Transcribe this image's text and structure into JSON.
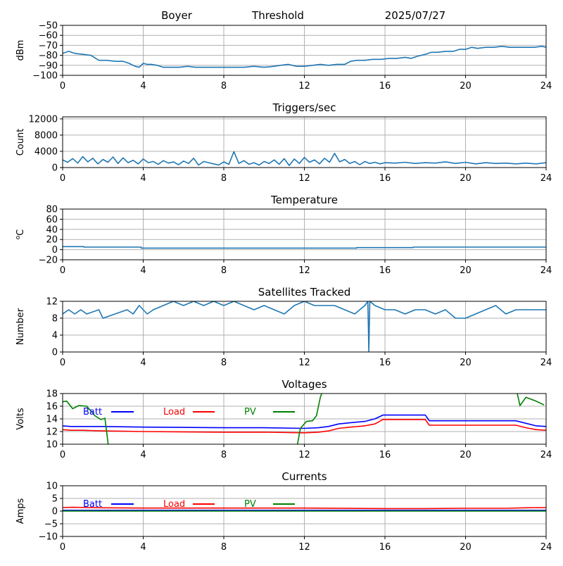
{
  "header": {
    "station": "Boyer",
    "mode": "Threshold",
    "date": "2025/07/27"
  },
  "colors": {
    "series": "#1f77b4",
    "batt": "#0000ff",
    "load": "#ff0000",
    "pv": "#008000",
    "grid": "#b0b0b0"
  },
  "chart_data": [
    {
      "id": "threshold",
      "type": "line",
      "title": "",
      "xlabel": "",
      "ylabel": "dBm",
      "xlim": [
        0,
        24
      ],
      "xticks": [
        0,
        4,
        8,
        12,
        16,
        20,
        24
      ],
      "ylim": [
        -100,
        -50
      ],
      "yticks": [
        -100,
        -90,
        -80,
        -70,
        -60,
        -50
      ],
      "series": [
        {
          "x": [
            0,
            0.3,
            0.6,
            1.0,
            1.4,
            1.8,
            2.2,
            2.6,
            3.0,
            3.3,
            3.6,
            3.8,
            4.0,
            4.2,
            4.4,
            4.7,
            5.0,
            5.4,
            5.8,
            6.2,
            6.6,
            7.0,
            7.5,
            8.0,
            8.5,
            9.0,
            9.5,
            10.0,
            10.5,
            10.8,
            11.2,
            11.6,
            12.0,
            12.4,
            12.8,
            13.2,
            13.6,
            14.0,
            14.3,
            14.6,
            15.0,
            15.4,
            15.8,
            16.2,
            16.6,
            17.0,
            17.3,
            17.6,
            18.0,
            18.3,
            18.6,
            19.0,
            19.4,
            19.7,
            20.0,
            20.3,
            20.6,
            21.0,
            21.4,
            21.8,
            22.2,
            22.6,
            23.0,
            23.4,
            23.8,
            24.0
          ],
          "y": [
            -78,
            -76,
            -78,
            -79,
            -80,
            -85,
            -85,
            -86,
            -86,
            -88,
            -91,
            -92,
            -88,
            -89,
            -89,
            -90,
            -92,
            -92,
            -92,
            -91,
            -92,
            -92,
            -92,
            -92,
            -92,
            -92,
            -91,
            -92,
            -91,
            -90,
            -89,
            -91,
            -91,
            -90,
            -89,
            -90,
            -89,
            -89,
            -86,
            -85,
            -85,
            -84,
            -84,
            -83,
            -83,
            -82,
            -83,
            -81,
            -79,
            -77,
            -77,
            -76,
            -76,
            -74,
            -74,
            -72,
            -73,
            -72,
            -72,
            -71,
            -72,
            -72,
            -72,
            -72,
            -71,
            -72
          ]
        }
      ]
    },
    {
      "id": "triggers",
      "type": "line",
      "title": "Triggers/sec",
      "xlabel": "",
      "ylabel": "Count",
      "xlim": [
        0,
        24
      ],
      "xticks": [
        0,
        4,
        8,
        12,
        16,
        20,
        24
      ],
      "ylim": [
        0,
        12500
      ],
      "yticks": [
        0,
        4000,
        8000,
        12000
      ],
      "series": [
        {
          "x": [
            0,
            0.25,
            0.5,
            0.75,
            1.0,
            1.25,
            1.5,
            1.75,
            2.0,
            2.25,
            2.5,
            2.75,
            3.0,
            3.25,
            3.5,
            3.75,
            4.0,
            4.25,
            4.5,
            4.75,
            5.0,
            5.25,
            5.5,
            5.75,
            6.0,
            6.25,
            6.5,
            6.75,
            7.0,
            7.25,
            7.5,
            7.75,
            8.0,
            8.25,
            8.5,
            8.75,
            9.0,
            9.25,
            9.5,
            9.75,
            10.0,
            10.25,
            10.5,
            10.75,
            11.0,
            11.25,
            11.5,
            11.75,
            12.0,
            12.25,
            12.5,
            12.75,
            13.0,
            13.25,
            13.5,
            13.75,
            14.0,
            14.25,
            14.5,
            14.75,
            15.0,
            15.25,
            15.5,
            15.75,
            16.0,
            16.5,
            17.0,
            17.5,
            18.0,
            18.5,
            19.0,
            19.5,
            20.0,
            20.5,
            21.0,
            21.5,
            22.0,
            22.5,
            23.0,
            23.5,
            24.0
          ],
          "y": [
            1900,
            1300,
            2200,
            1100,
            2700,
            1400,
            2300,
            900,
            2000,
            1300,
            2600,
            1000,
            2400,
            1200,
            1800,
            900,
            2100,
            1200,
            1500,
            800,
            1700,
            1100,
            1400,
            700,
            1600,
            1000,
            2300,
            600,
            1500,
            1200,
            900,
            600,
            1400,
            800,
            3900,
            1000,
            1700,
            800,
            1200,
            600,
            1500,
            1000,
            1900,
            800,
            2200,
            500,
            2100,
            1000,
            2500,
            1300,
            1900,
            900,
            2300,
            1300,
            3500,
            1400,
            2000,
            1000,
            1500,
            700,
            1500,
            1000,
            1300,
            900,
            1200,
            1100,
            1300,
            1000,
            1200,
            1100,
            1400,
            1000,
            1300,
            900,
            1200,
            1000,
            1100,
            900,
            1100,
            900,
            1200
          ]
        }
      ]
    },
    {
      "id": "temperature",
      "type": "line",
      "title": "Temperature",
      "xlabel": "",
      "ylabel": "°C",
      "ylabel_sup": "o",
      "ylabel_main": "C",
      "xlim": [
        0,
        24
      ],
      "xticks": [
        0,
        4,
        8,
        12,
        16,
        20,
        24
      ],
      "ylim": [
        -20,
        80
      ],
      "yticks": [
        -20,
        0,
        20,
        40,
        60,
        80
      ],
      "series": [
        {
          "x": [
            0,
            1.05,
            1.05,
            3.9,
            3.9,
            14.6,
            14.6,
            17.4,
            17.4,
            24
          ],
          "y": [
            6,
            6,
            5,
            5,
            3,
            3,
            4,
            4,
            5,
            5
          ]
        }
      ]
    },
    {
      "id": "satellites",
      "type": "line",
      "title": "Satellites Tracked",
      "xlabel": "",
      "ylabel": "Number",
      "xlim": [
        0,
        24
      ],
      "xticks": [
        0,
        4,
        8,
        12,
        16,
        20,
        24
      ],
      "ylim": [
        0,
        12
      ],
      "yticks": [
        0,
        4,
        8,
        12
      ],
      "series": [
        {
          "x": [
            0,
            0.3,
            0.6,
            0.9,
            1.2,
            1.8,
            2.0,
            2.6,
            3.2,
            3.5,
            3.8,
            4.2,
            4.5,
            5.0,
            5.5,
            6.0,
            6.5,
            7.0,
            7.5,
            8.0,
            8.5,
            9.0,
            9.5,
            10.0,
            10.5,
            11.0,
            11.5,
            12.0,
            12.5,
            13.0,
            13.5,
            14.0,
            14.5,
            15.0,
            15.15,
            15.2,
            15.25,
            15.5,
            16.0,
            16.5,
            17.0,
            17.5,
            18.0,
            18.5,
            19.0,
            19.5,
            20.0,
            20.5,
            21.0,
            21.5,
            22.0,
            22.5,
            23.0,
            23.5,
            24.0
          ],
          "y": [
            9,
            10,
            9,
            10,
            9,
            10,
            8,
            9,
            10,
            9,
            11,
            9,
            10,
            11,
            12,
            11,
            12,
            11,
            12,
            11,
            12,
            11,
            10,
            11,
            10,
            9,
            11,
            12,
            11,
            11,
            11,
            10,
            9,
            11,
            12,
            0,
            12,
            11,
            10,
            10,
            9,
            10,
            10,
            9,
            10,
            8,
            8,
            9,
            10,
            11,
            9,
            10,
            10,
            10,
            10
          ]
        }
      ]
    },
    {
      "id": "voltages",
      "type": "line",
      "title": "Voltages",
      "xlabel": "",
      "ylabel": "Volts",
      "xlim": [
        0,
        24
      ],
      "xticks": [
        0,
        4,
        8,
        12,
        16,
        20,
        24
      ],
      "ylim": [
        10,
        18
      ],
      "yticks": [
        10,
        12,
        14,
        16,
        18
      ],
      "legend": [
        "Batt",
        "Load",
        "PV"
      ],
      "series": [
        {
          "name": "Batt",
          "color_key": "batt",
          "x": [
            0,
            0.4,
            1.0,
            2.0,
            4.0,
            8.0,
            10.0,
            12.0,
            12.7,
            13.2,
            13.7,
            14.3,
            15.0,
            15.5,
            15.9,
            16.3,
            17.0,
            18.0,
            18.2,
            19.0,
            20.0,
            21.0,
            22.0,
            22.5,
            23.0,
            23.5,
            24.0
          ],
          "y": [
            12.9,
            12.8,
            12.8,
            12.8,
            12.7,
            12.6,
            12.6,
            12.5,
            12.6,
            12.8,
            13.2,
            13.4,
            13.6,
            14.0,
            14.6,
            14.6,
            14.6,
            14.6,
            13.7,
            13.7,
            13.7,
            13.7,
            13.7,
            13.7,
            13.3,
            12.9,
            12.8
          ]
        },
        {
          "name": "Load",
          "color_key": "load",
          "x": [
            0,
            0.4,
            1.0,
            2.0,
            4.0,
            8.0,
            10.0,
            12.0,
            12.7,
            13.2,
            13.7,
            14.3,
            15.0,
            15.5,
            15.9,
            16.3,
            17.0,
            18.0,
            18.2,
            19.0,
            20.0,
            21.0,
            22.0,
            22.5,
            23.0,
            23.5,
            24.0
          ],
          "y": [
            12.3,
            12.2,
            12.2,
            12.1,
            12.0,
            11.9,
            11.9,
            11.8,
            11.9,
            12.1,
            12.5,
            12.7,
            12.9,
            13.2,
            13.9,
            13.9,
            13.9,
            13.9,
            13.0,
            13.0,
            13.0,
            13.0,
            13.0,
            13.0,
            12.6,
            12.3,
            12.2
          ]
        },
        {
          "name": "PV",
          "color_key": "pv",
          "x": [
            0,
            0.2,
            0.5,
            0.8,
            1.2,
            1.6,
            1.9,
            2.1,
            2.3,
            11.6,
            11.8,
            12.1,
            12.4,
            12.6,
            12.8,
            13.0,
            16.0,
            22.5,
            22.7,
            23.0,
            23.5,
            23.9
          ],
          "y": [
            16.7,
            16.8,
            15.6,
            16.1,
            16.0,
            14.5,
            13.9,
            14.1,
            9.0,
            9.0,
            12.5,
            13.6,
            13.7,
            14.5,
            17.5,
            19.0,
            19.0,
            19.0,
            16.1,
            17.4,
            16.8,
            16.2
          ]
        }
      ]
    },
    {
      "id": "currents",
      "type": "line",
      "title": "Currents",
      "xlabel": "",
      "ylabel": "Amps",
      "xlim": [
        0,
        24
      ],
      "xticks": [
        0,
        4,
        8,
        12,
        16,
        20,
        24
      ],
      "ylim": [
        -10,
        10
      ],
      "yticks": [
        -10,
        -5,
        0,
        5,
        10
      ],
      "legend": [
        "Batt",
        "Load",
        "PV"
      ],
      "series": [
        {
          "name": "Batt",
          "color_key": "batt",
          "x": [
            0,
            24
          ],
          "y": [
            0.3,
            0.3
          ]
        },
        {
          "name": "Load",
          "color_key": "load",
          "x": [
            0,
            0.5,
            2.0,
            4.0,
            8.0,
            12.0,
            16.0,
            18.0,
            20.0,
            22.0,
            23.0,
            24.0
          ],
          "y": [
            1.4,
            1.5,
            1.3,
            1.2,
            1.2,
            1.2,
            1.0,
            1.0,
            1.1,
            1.1,
            1.3,
            1.4
          ]
        },
        {
          "name": "PV",
          "color_key": "pv",
          "x": [
            0,
            24
          ],
          "y": [
            0,
            0
          ]
        }
      ]
    }
  ]
}
